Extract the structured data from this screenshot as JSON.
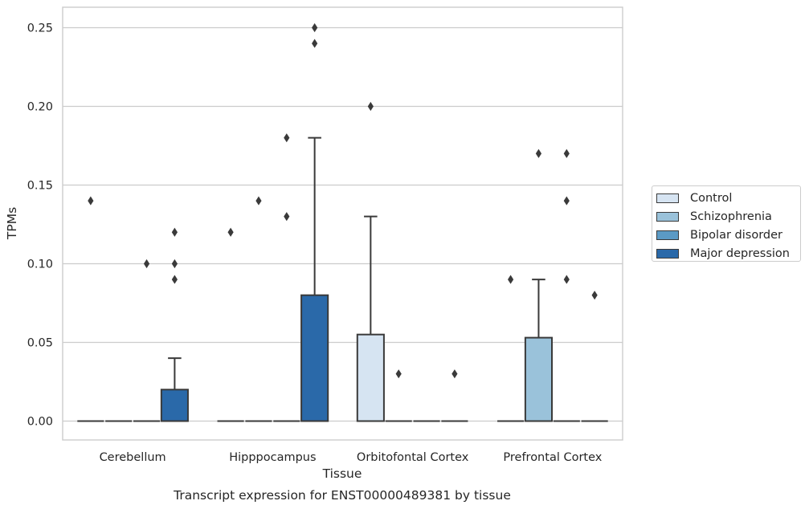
{
  "chart_data": {
    "type": "box",
    "xlabel": "Tissue",
    "ylabel": "TPMs",
    "caption": "Transcript expression for ENST00000489381 by tissue",
    "categories": [
      "Cerebellum",
      "Hipppocampus",
      "Orbitofontal Cortex",
      "Prefrontal Cortex"
    ],
    "ylim": [
      -0.012,
      0.263
    ],
    "yticks": [
      0.0,
      0.05,
      0.1,
      0.15,
      0.2,
      0.25
    ],
    "ytick_labels": [
      "0.00",
      "0.05",
      "0.10",
      "0.15",
      "0.20",
      "0.25"
    ],
    "grid": "horizontal",
    "legend_position": "right, outside plot",
    "series": [
      {
        "name": "Control",
        "color": "#d6e4f2",
        "boxes": [
          {
            "q1": 0,
            "median": 0,
            "q3": 0,
            "whislo": 0,
            "whishi": 0,
            "fliers": [
              0.14
            ]
          },
          {
            "q1": 0,
            "median": 0,
            "q3": 0,
            "whislo": 0,
            "whishi": 0,
            "fliers": [
              0.12
            ]
          },
          {
            "q1": 0,
            "median": 0,
            "q3": 0.055,
            "whislo": 0,
            "whishi": 0.13,
            "fliers": [
              0.2
            ]
          },
          {
            "q1": 0,
            "median": 0,
            "q3": 0,
            "whislo": 0,
            "whishi": 0,
            "fliers": [
              0.09
            ]
          }
        ]
      },
      {
        "name": "Schizophrenia",
        "color": "#9ac2da",
        "boxes": [
          {
            "q1": 0,
            "median": 0,
            "q3": 0,
            "whislo": 0,
            "whishi": 0,
            "fliers": []
          },
          {
            "q1": 0,
            "median": 0,
            "q3": 0,
            "whislo": 0,
            "whishi": 0,
            "fliers": [
              0.14
            ]
          },
          {
            "q1": 0,
            "median": 0,
            "q3": 0,
            "whislo": 0,
            "whishi": 0,
            "fliers": [
              0.03
            ]
          },
          {
            "q1": 0,
            "median": 0,
            "q3": 0.053,
            "whislo": 0,
            "whishi": 0.09,
            "fliers": [
              0.17
            ]
          }
        ]
      },
      {
        "name": "Bipolar disorder",
        "color": "#5b9ac5",
        "boxes": [
          {
            "q1": 0,
            "median": 0,
            "q3": 0,
            "whislo": 0,
            "whishi": 0,
            "fliers": [
              0.1
            ]
          },
          {
            "q1": 0,
            "median": 0,
            "q3": 0,
            "whislo": 0,
            "whishi": 0,
            "fliers": [
              0.13,
              0.18
            ]
          },
          {
            "q1": 0,
            "median": 0,
            "q3": 0,
            "whislo": 0,
            "whishi": 0,
            "fliers": []
          },
          {
            "q1": 0,
            "median": 0,
            "q3": 0,
            "whislo": 0,
            "whishi": 0,
            "fliers": [
              0.09,
              0.14,
              0.17
            ]
          }
        ]
      },
      {
        "name": "Major depression",
        "color": "#2a69a9",
        "boxes": [
          {
            "q1": 0,
            "median": 0,
            "q3": 0.02,
            "whislo": 0,
            "whishi": 0.04,
            "fliers": [
              0.09,
              0.1,
              0.12
            ]
          },
          {
            "q1": 0,
            "median": 0,
            "q3": 0.08,
            "whislo": 0,
            "whishi": 0.18,
            "fliers": [
              0.24,
              0.25
            ]
          },
          {
            "q1": 0,
            "median": 0,
            "q3": 0,
            "whislo": 0,
            "whishi": 0,
            "fliers": [
              0.03
            ]
          },
          {
            "q1": 0,
            "median": 0,
            "q3": 0,
            "whislo": 0,
            "whishi": 0,
            "fliers": [
              0.08
            ]
          }
        ]
      }
    ]
  }
}
